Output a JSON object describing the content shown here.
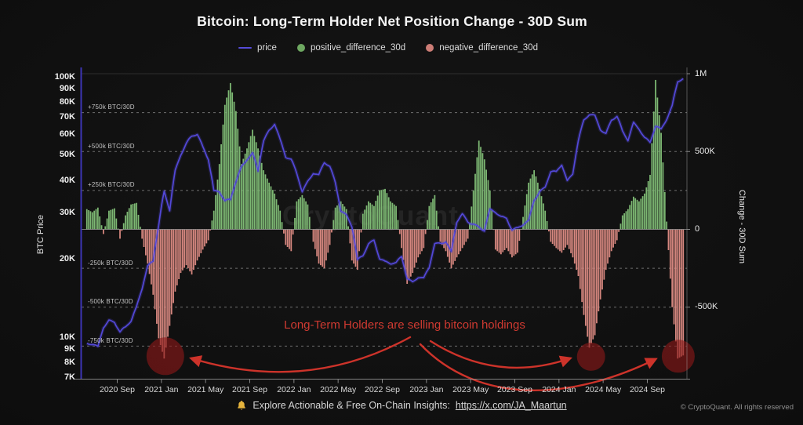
{
  "header": {
    "title": "Bitcoin: Long-Term Holder Net Position Change - 30D Sum",
    "legend": [
      {
        "label": "price",
        "type": "line",
        "color": "#554bd8"
      },
      {
        "label": "positive_difference_30d",
        "type": "dot",
        "color": "#6ea861"
      },
      {
        "label": "negative_difference_30d",
        "type": "dot",
        "color": "#cd7d76"
      }
    ]
  },
  "watermark": "CryptoQuant",
  "chart_data": {
    "type": "bar",
    "overlay": "line",
    "title": "Bitcoin: Long-Term Holder Net Position Change - 30D Sum",
    "x_start_month": "2020-06",
    "x_span_months": 54.5,
    "points_per_month": 2,
    "x_tick_labels": [
      "2020 Sep",
      "2021 Jan",
      "2021 May",
      "2021 Sep",
      "2022 Jan",
      "2022 May",
      "2022 Sep",
      "2023 Jan",
      "2023 May",
      "2023 Sep",
      "2024 Jan",
      "2024 May",
      "2024 Sep"
    ],
    "x_tick_month_index": [
      3,
      7,
      11,
      15,
      19,
      23,
      27,
      31,
      35,
      39,
      43,
      47,
      51
    ],
    "left_axis": {
      "title": "BTC Price",
      "scale": "log",
      "tick_values_k": [
        100,
        90,
        80,
        70,
        60,
        50,
        40,
        30,
        20,
        10,
        9,
        8,
        7
      ],
      "tick_labels": [
        "100K",
        "90K",
        "80K",
        "70K",
        "60K",
        "50K",
        "40K",
        "30K",
        "20K",
        "10K",
        "9K",
        "8K",
        "7K"
      ],
      "range_usd": [
        7000,
        105000
      ]
    },
    "right_axis": {
      "title": "Change - 30D Sum",
      "scale": "linear",
      "tick_values_k": [
        1000,
        500,
        0,
        -500
      ],
      "tick_labels": [
        "1M",
        "500K",
        "0",
        "-500K"
      ],
      "range_k": [
        -1000,
        1000
      ]
    },
    "guides_k": [
      {
        "label": "+750k BTC/30D",
        "value": 750
      },
      {
        "label": "+500k BTC/30D",
        "value": 500
      },
      {
        "label": "+250k BTC/30D",
        "value": 250
      },
      {
        "label": "-250k BTC/30D",
        "value": -250
      },
      {
        "label": "-500k BTC/30D",
        "value": -500
      },
      {
        "label": "-750k BTC/30D",
        "value": -750
      }
    ],
    "series": [
      {
        "name": "price",
        "axis": "left",
        "unit": "thousand USD",
        "color": "#5348d8",
        "values": [
          9.4,
          9.3,
          9.1,
          11.0,
          11.7,
          11.5,
          10.4,
          10.8,
          11.5,
          13.1,
          15.6,
          18.8,
          19.5,
          26.5,
          36,
          31,
          44,
          50.5,
          55,
          58.5,
          60,
          54,
          49,
          36.5,
          36,
          33,
          33.5,
          40,
          45.5,
          48.5,
          50.5,
          43,
          56.5,
          62.5,
          67,
          57.5,
          49,
          47.5,
          42.5,
          36.5,
          40,
          43,
          41.5,
          46.5,
          45,
          39.5,
          31,
          29.5,
          26.5,
          19.5,
          20.5,
          23,
          23.8,
          20.2,
          19.3,
          19,
          19.2,
          20.6,
          17,
          16.3,
          16.9,
          16.6,
          18.5,
          23,
          23.2,
          23.4,
          21,
          27.5,
          29.5,
          28,
          27.5,
          26.5,
          25.5,
          30.5,
          30.2,
          29.2,
          29,
          25.9,
          26,
          26.8,
          27.8,
          34,
          36.5,
          37.8,
          43,
          42.5,
          46,
          40,
          43,
          57,
          67.5,
          71,
          70.5,
          63.5,
          61,
          68.5,
          70,
          61,
          57,
          67,
          64,
          58.5,
          55.5,
          64,
          62.5,
          69.5,
          78,
          96.5,
          97.5
        ]
      },
      {
        "name": "net_position_change_30d",
        "axis": "right",
        "unit": "thousand BTC / 30D",
        "positive_color": "#7db873",
        "negative_color": "#d6877f",
        "values": [
          130,
          110,
          140,
          -30,
          120,
          135,
          -60,
          90,
          160,
          170,
          -60,
          -220,
          -420,
          -700,
          -830,
          -620,
          -400,
          -280,
          -230,
          -290,
          -200,
          -130,
          -70,
          120,
          420,
          800,
          940,
          760,
          420,
          520,
          640,
          520,
          380,
          300,
          230,
          120,
          -100,
          -140,
          180,
          220,
          160,
          -80,
          -220,
          -250,
          -100,
          140,
          180,
          130,
          -200,
          -260,
          100,
          180,
          150,
          250,
          260,
          180,
          150,
          -120,
          -350,
          -280,
          -180,
          -120,
          150,
          220,
          -80,
          -140,
          -250,
          -180,
          -120,
          -60,
          250,
          570,
          450,
          250,
          -130,
          -160,
          -120,
          -180,
          -150,
          80,
          300,
          380,
          260,
          120,
          -80,
          -120,
          -150,
          -100,
          -180,
          -300,
          -550,
          -760,
          -680,
          -450,
          -260,
          -140,
          -70,
          90,
          130,
          210,
          180,
          230,
          350,
          960,
          620,
          50,
          -500,
          -830,
          -810
        ]
      }
    ]
  },
  "annotation": {
    "text": "Long-Term Holders are selling bitcoin holdings",
    "color": "#cf3a31",
    "arrow_color": "#d8352c",
    "highlight_circles": [
      {
        "approx_date": "2021 Jan",
        "m": 7.35,
        "value_k": -815,
        "radius": 24
      },
      {
        "approx_date": "2024 Apr",
        "m": 45.9,
        "value_k": -818,
        "radius": 18
      },
      {
        "approx_date": "2024 Dec",
        "m": 53.8,
        "value_k": -815,
        "radius": 21
      }
    ]
  },
  "footer": {
    "bell_color": "#e6b33c",
    "message": "Explore Actionable & Free On-Chain Insights:",
    "link": "https://x.com/JA_Maartun",
    "copyright": "© CryptoQuant. All rights reserved"
  }
}
